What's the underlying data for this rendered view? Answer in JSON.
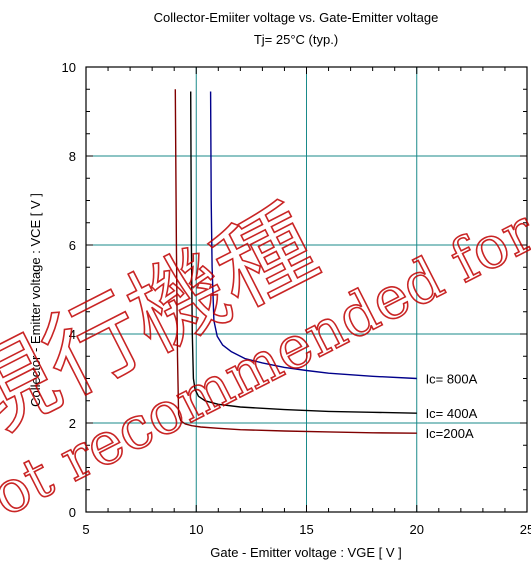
{
  "chart_data": {
    "type": "line",
    "title": "Collector-Emiiter voltage  vs. Gate-Emitter voltage",
    "subtitle": "Tj= 25°C  (typ.)",
    "xlabel": "Gate - Emitter voltage  :  VGE  [ V ]",
    "ylabel": "Collector - Emitter voltage  :  VCE  [ V ]",
    "xlim": [
      5,
      25
    ],
    "ylim": [
      0,
      10
    ],
    "xticks": [
      5,
      10,
      15,
      20,
      25
    ],
    "yticks": [
      0,
      2,
      4,
      6,
      8,
      10
    ],
    "xtick_labels": [
      "5",
      "10",
      "15",
      "20",
      "25"
    ],
    "ytick_labels": [
      "0",
      "2",
      "4",
      "6",
      "8",
      "10"
    ],
    "grid": true,
    "series": [
      {
        "name": "Ic=200A",
        "color": "#800000",
        "x": [
          9.05,
          9.1,
          9.15,
          9.2,
          9.3,
          9.5,
          9.8,
          10.2,
          11,
          12,
          14,
          16,
          18,
          20
        ],
        "y": [
          9.5,
          6.0,
          3.5,
          2.2,
          2.05,
          1.98,
          1.94,
          1.91,
          1.88,
          1.85,
          1.82,
          1.8,
          1.78,
          1.77
        ]
      },
      {
        "name": "Ic= 400A",
        "color": "#000000",
        "x": [
          9.75,
          9.78,
          9.82,
          9.87,
          9.95,
          10.1,
          10.4,
          11,
          12,
          14,
          16,
          18,
          20
        ],
        "y": [
          9.45,
          6.0,
          4.0,
          3.0,
          2.75,
          2.6,
          2.5,
          2.42,
          2.36,
          2.3,
          2.26,
          2.24,
          2.22
        ]
      },
      {
        "name": "Ic= 800A",
        "color": "#00008b",
        "x": [
          10.65,
          10.68,
          10.72,
          10.8,
          10.95,
          11.2,
          11.6,
          12.2,
          13,
          14,
          15,
          16,
          18,
          20
        ],
        "y": [
          9.45,
          7.0,
          5.5,
          4.3,
          3.95,
          3.75,
          3.6,
          3.45,
          3.35,
          3.25,
          3.18,
          3.12,
          3.05,
          3.0
        ]
      }
    ],
    "annotations": [
      {
        "text": "Ic= 800A",
        "x": 20.4,
        "y": 3.0
      },
      {
        "text": "Ic= 400A",
        "x": 20.4,
        "y": 2.22
      },
      {
        "text": "Ic=200A",
        "x": 20.4,
        "y": 1.77
      }
    ],
    "legend": "none"
  },
  "watermark": {
    "line1": "現行機種",
    "line2": "Not recommended for new design.",
    "color": "#c00000"
  }
}
